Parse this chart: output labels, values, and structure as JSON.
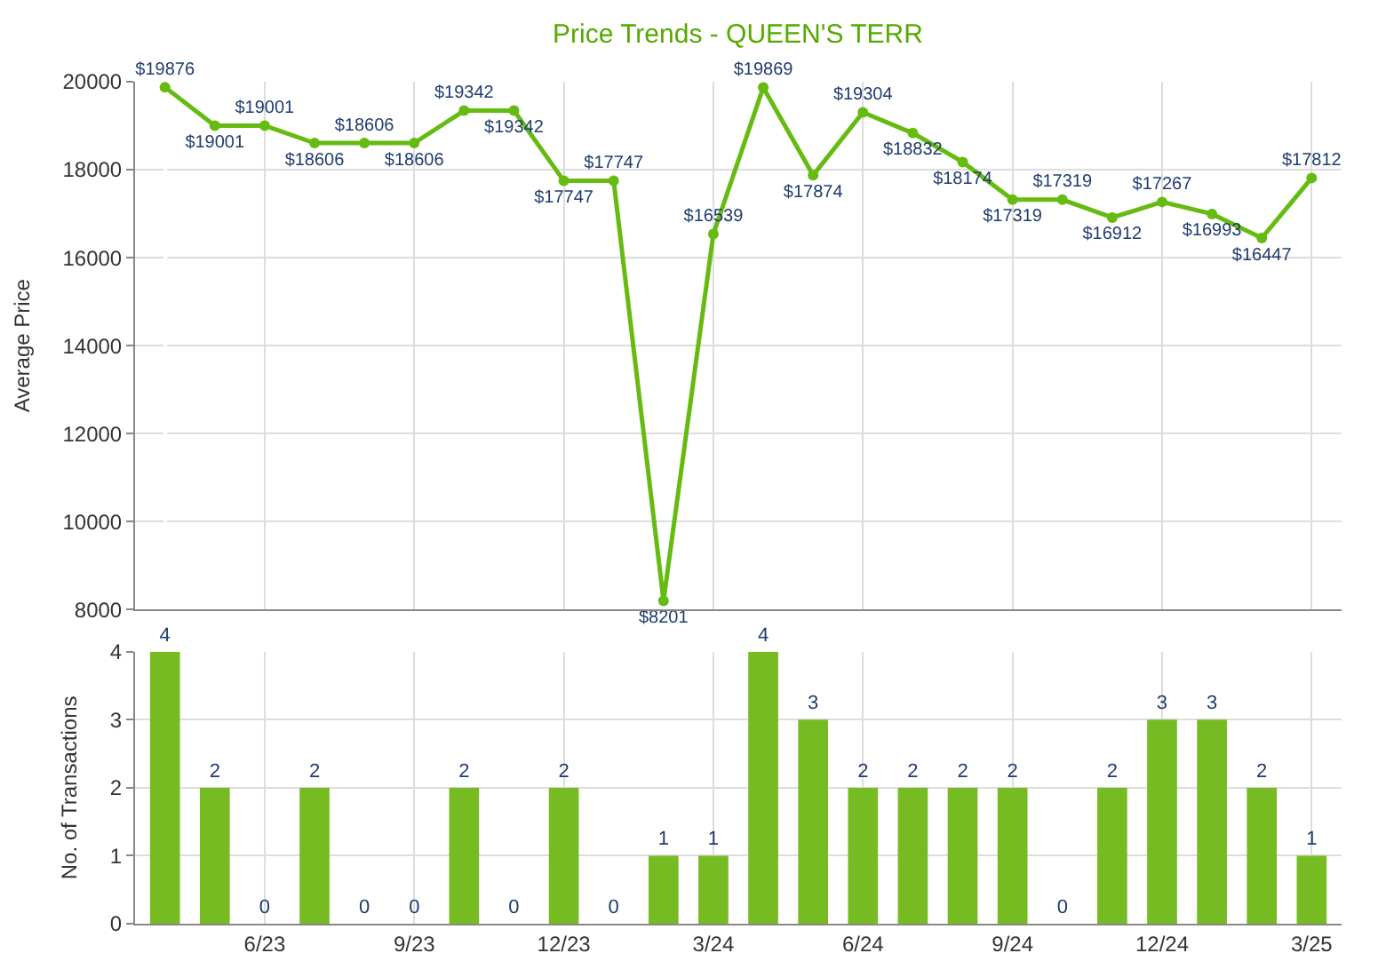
{
  "chart_data": [
    {
      "type": "line",
      "title": "Price Trends - QUEEN'S TERR",
      "ylabel": "Average Price",
      "categories": [
        null,
        null,
        null,
        null,
        null,
        null,
        null,
        null,
        null,
        null,
        null,
        null,
        null,
        null,
        null,
        null,
        null,
        null,
        null,
        null,
        null,
        null,
        null,
        null
      ],
      "series": [
        {
          "color": "#66bb11",
          "values": [
            19876,
            19001,
            19001,
            18606,
            18606,
            18606,
            19342,
            19342,
            17747,
            17747,
            8201,
            16539,
            19869,
            17874,
            19304,
            18832,
            18174,
            17319,
            17319,
            16912,
            17267,
            16993,
            16447,
            17812
          ],
          "value_labels": [
            "$19876",
            "$19001",
            "$19001",
            "$18606",
            "$18606",
            "$18606",
            "$19342",
            "$19342",
            "$17747",
            "$17747",
            "$8201",
            "$16539",
            "$19869",
            "$17874",
            "$19304",
            "$18832",
            "$18174",
            "$17319",
            "$17319",
            "$16912",
            "$17267",
            "$16993",
            "$16447",
            "$17812"
          ]
        }
      ],
      "ylim": [
        8000,
        20000
      ],
      "yticks": [
        8000,
        10000,
        12000,
        14000,
        16000,
        18000,
        20000
      ],
      "grid": true,
      "legend": false,
      "marker": "circle",
      "line_style": "solid",
      "tick_labels": "y"
    },
    {
      "type": "bar",
      "ylabel": "No. of Transactions",
      "categories": [
        null,
        null,
        "6/23",
        null,
        null,
        "9/23",
        null,
        null,
        "12/23",
        null,
        null,
        "3/24",
        null,
        null,
        "6/24",
        null,
        null,
        "9/24",
        null,
        null,
        "12/24",
        null,
        null,
        "3/25"
      ],
      "series": [
        {
          "color": "#77bb22",
          "values": [
            4,
            2,
            0,
            2,
            0,
            0,
            2,
            0,
            2,
            0,
            1,
            1,
            4,
            3,
            2,
            2,
            2,
            2,
            0,
            2,
            3,
            3,
            2,
            1
          ]
        }
      ],
      "ylim": [
        0,
        4
      ],
      "yticks": [
        0,
        1,
        2,
        3,
        4
      ],
      "grid": true,
      "legend": false,
      "data_labels": true
    }
  ]
}
